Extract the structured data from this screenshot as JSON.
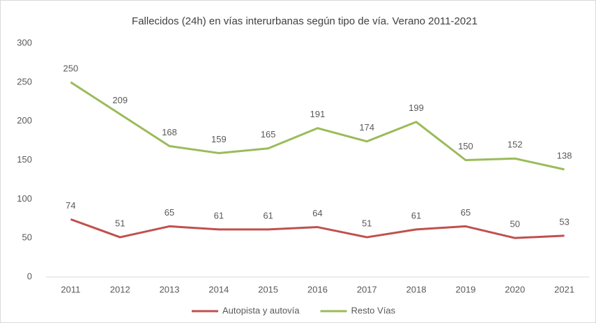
{
  "chart_data": {
    "type": "line",
    "title": "Fallecidos (24h) en vías interurbanas según tipo de vía. Verano 2011-2021",
    "categories": [
      "2011",
      "2012",
      "2013",
      "2014",
      "2015",
      "2016",
      "2017",
      "2018",
      "2019",
      "2020",
      "2021"
    ],
    "series": [
      {
        "name": "Autopista y autovía",
        "color": "#c0504d",
        "values": [
          74,
          51,
          65,
          61,
          61,
          64,
          51,
          61,
          65,
          50,
          53
        ]
      },
      {
        "name": "Resto Vías",
        "color": "#9bbb59",
        "values": [
          250,
          209,
          168,
          159,
          165,
          191,
          174,
          199,
          150,
          152,
          138
        ]
      }
    ],
    "ylim": [
      0,
      300
    ],
    "yticks": [
      0,
      50,
      100,
      150,
      200,
      250,
      300
    ],
    "grid": false,
    "legend": "bottom"
  }
}
